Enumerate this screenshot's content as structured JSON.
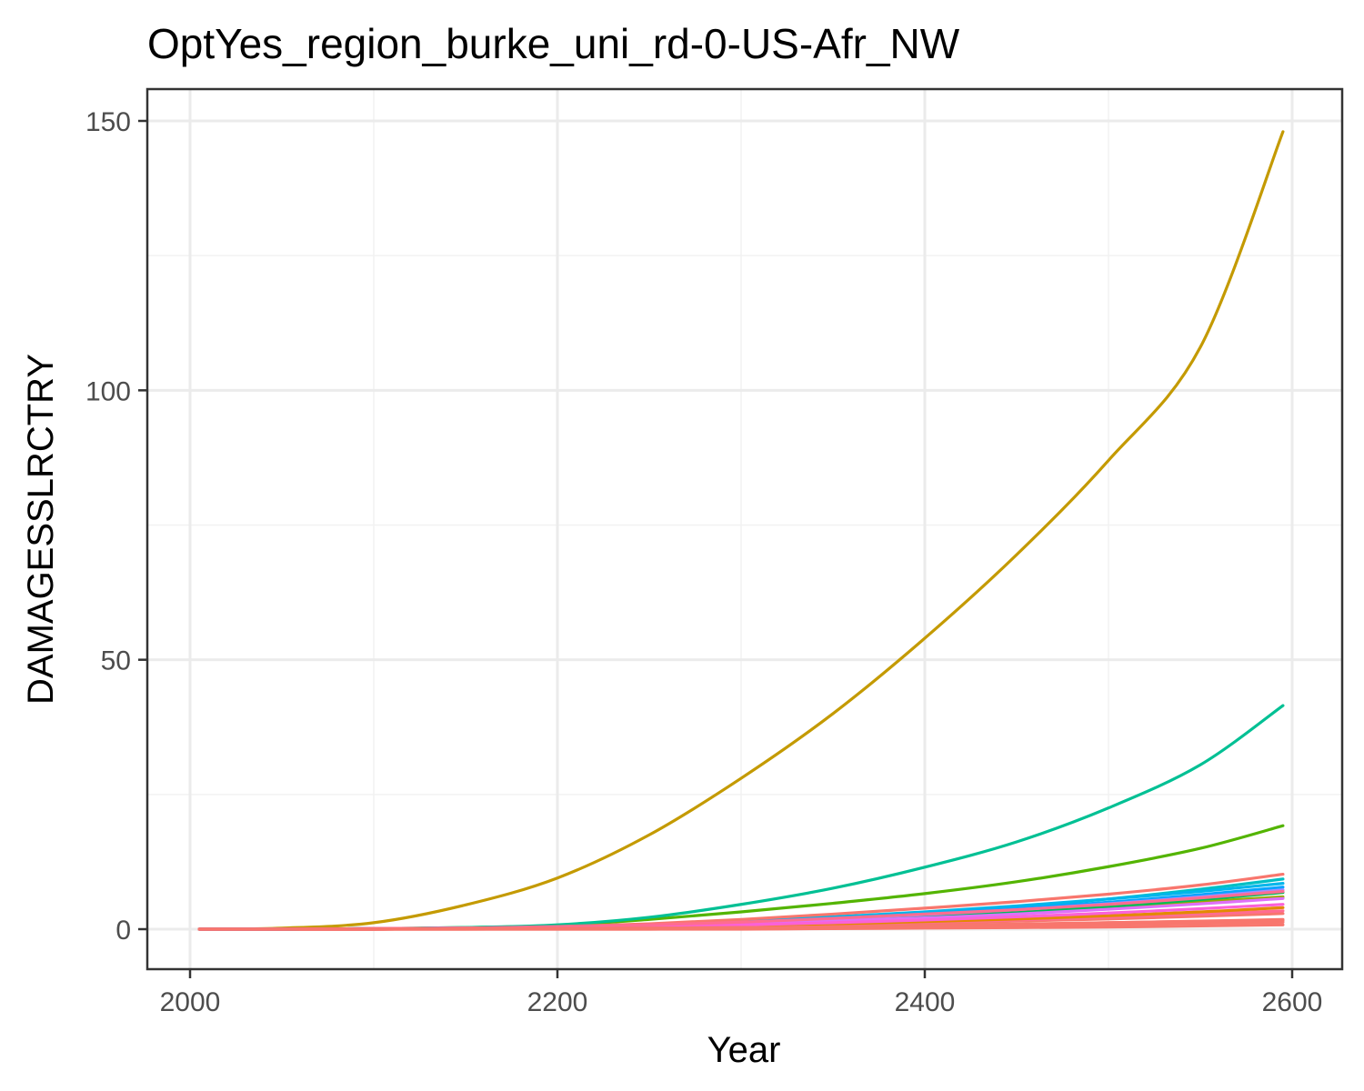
{
  "chart_data": {
    "type": "line",
    "title": "OptYes_region_burke_uni_rd-0-US-Afr_NW",
    "xlabel": "Year",
    "ylabel": "DAMAGESSLRCTRY",
    "xlim": [
      2000,
      2600
    ],
    "ylim": [
      0,
      150
    ],
    "x_ticks": [
      2000,
      2200,
      2400,
      2600
    ],
    "y_ticks": [
      0,
      50,
      100,
      150
    ],
    "grid": true,
    "legend": "none",
    "x": [
      2005,
      2050,
      2100,
      2150,
      2200,
      2250,
      2300,
      2350,
      2400,
      2450,
      2500,
      2550,
      2595
    ],
    "series": [
      {
        "color": "#F8766D",
        "values": [
          0,
          0,
          0,
          0,
          0,
          0,
          0,
          0.1,
          0.2,
          0.3,
          0.4,
          0.6,
          0.8
        ]
      },
      {
        "color": "#F8766D",
        "values": [
          0,
          0,
          0,
          0.1,
          0.1,
          0.2,
          0.3,
          0.5,
          0.7,
          0.9,
          1.2,
          1.5,
          1.8
        ]
      },
      {
        "color": "#F8766D",
        "values": [
          0,
          0,
          0,
          0.1,
          0.2,
          0.3,
          0.5,
          0.8,
          1.1,
          1.5,
          1.9,
          2.4,
          2.9
        ]
      },
      {
        "color": "#FF6C91",
        "values": [
          0,
          0,
          0,
          0.1,
          0.2,
          0.4,
          0.6,
          0.9,
          1.3,
          1.7,
          2.2,
          2.8,
          3.4
        ]
      },
      {
        "color": "#E38900",
        "values": [
          0,
          0,
          0,
          0.1,
          0.2,
          0.4,
          0.7,
          1.0,
          1.4,
          1.9,
          2.5,
          3.2,
          4.0
        ]
      },
      {
        "color": "#C49A00",
        "values": [
          0,
          0.2,
          1.2,
          4.5,
          9.5,
          17.5,
          28,
          40,
          54,
          69.5,
          87,
          108,
          148
        ]
      },
      {
        "color": "#99A800",
        "values": [
          0,
          0,
          0.1,
          0.2,
          0.4,
          0.7,
          1.1,
          1.7,
          2.4,
          3.2,
          4.1,
          5.1,
          6.0
        ]
      },
      {
        "color": "#53B400",
        "values": [
          0,
          0,
          0.1,
          0.3,
          0.7,
          1.8,
          3.2,
          4.8,
          6.6,
          8.8,
          11.6,
          15.0,
          19.2
        ]
      },
      {
        "color": "#00BC56",
        "values": [
          0,
          0,
          0.1,
          0.2,
          0.4,
          0.7,
          1.1,
          1.7,
          2.4,
          3.2,
          4.2,
          5.5,
          6.8
        ]
      },
      {
        "color": "#00C094",
        "values": [
          0,
          0,
          0.1,
          0.3,
          0.8,
          2.2,
          4.6,
          7.6,
          11.5,
          16.2,
          22.5,
          30.5,
          41.5
        ]
      },
      {
        "color": "#00BFC4",
        "values": [
          0,
          0,
          0.1,
          0.2,
          0.4,
          0.8,
          1.3,
          2.0,
          2.9,
          4.1,
          5.6,
          7.4,
          9.3
        ]
      },
      {
        "color": "#00B6EB",
        "values": [
          0,
          0,
          0.1,
          0.2,
          0.5,
          0.9,
          1.5,
          2.3,
          3.2,
          4.3,
          5.6,
          7.0,
          8.5
        ]
      },
      {
        "color": "#06A4FF",
        "values": [
          0,
          0,
          0.1,
          0.2,
          0.4,
          0.8,
          1.3,
          2.0,
          2.8,
          3.8,
          5.0,
          6.4,
          7.8
        ]
      },
      {
        "color": "#A58AFF",
        "values": [
          0,
          0,
          0.1,
          0.2,
          0.4,
          0.8,
          1.3,
          1.9,
          2.7,
          3.6,
          4.7,
          6.0,
          7.3
        ]
      },
      {
        "color": "#DF70F8",
        "values": [
          0,
          0,
          0.1,
          0.2,
          0.3,
          0.6,
          1.0,
          1.5,
          2.1,
          2.8,
          3.7,
          4.7,
          5.7
        ]
      },
      {
        "color": "#FB61D7",
        "values": [
          0,
          0,
          0,
          0.1,
          0.3,
          0.5,
          0.8,
          1.2,
          1.7,
          2.3,
          3.0,
          3.8,
          4.6
        ]
      },
      {
        "color": "#F8766D",
        "values": [
          0,
          0,
          0.1,
          0.2,
          0.5,
          1.0,
          1.8,
          2.8,
          3.9,
          5.1,
          6.5,
          8.2,
          10.2
        ]
      },
      {
        "color": "#FF6C91",
        "values": [
          0,
          0,
          0.1,
          0.2,
          0.4,
          0.8,
          1.3,
          2.0,
          2.8,
          3.6,
          4.6,
          5.8,
          7.0
        ]
      },
      {
        "color": "#F8766D",
        "values": [
          0,
          0,
          0,
          0.1,
          0.1,
          0.2,
          0.3,
          0.4,
          0.6,
          0.8,
          1.0,
          1.3,
          1.6
        ]
      },
      {
        "color": "#F8766D",
        "values": [
          0,
          0,
          0,
          0,
          0.1,
          0.2,
          0.3,
          0.4,
          0.5,
          0.7,
          0.9,
          1.1,
          1.3
        ]
      }
    ]
  }
}
